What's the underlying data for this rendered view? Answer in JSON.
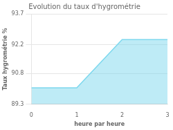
{
  "chart_data": {
    "type": "area",
    "title": "Evolution du taux d'hygrométrie",
    "xlabel": "heure par heure",
    "ylabel": "Taux hygrométrie %",
    "x": [
      0,
      1,
      2,
      3
    ],
    "values": [
      90.1,
      90.1,
      92.45,
      92.45
    ],
    "color": "#7dd8ee",
    "xlim": [
      0,
      3
    ],
    "xticks": [
      0,
      1,
      2,
      3
    ],
    "ylim": [
      89.3,
      93.7
    ],
    "yticks": [
      89.3,
      90.8,
      92.2,
      93.7
    ],
    "grid": "y"
  }
}
